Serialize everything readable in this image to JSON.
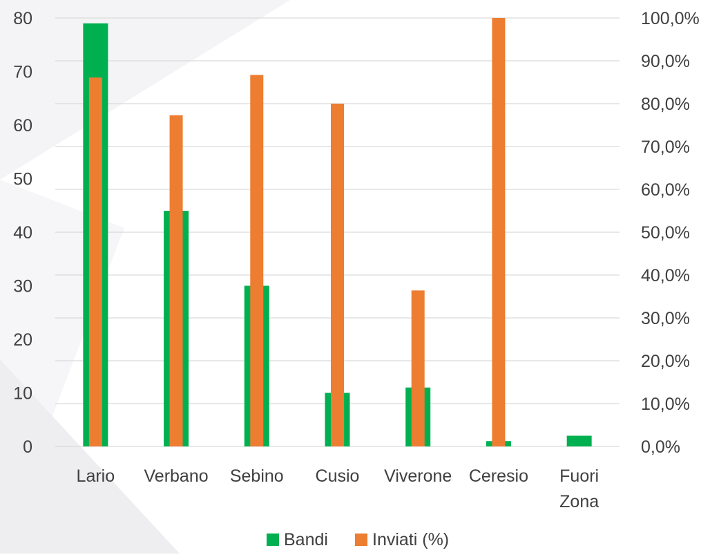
{
  "chart_data": {
    "type": "bar",
    "categories": [
      [
        "Lario"
      ],
      [
        "Verbano"
      ],
      [
        "Sebino"
      ],
      [
        "Cusio"
      ],
      [
        "Viverone"
      ],
      [
        "Ceresio"
      ],
      [
        "Fuori",
        "Zona"
      ]
    ],
    "series": [
      {
        "name": "Bandi",
        "axis": "left",
        "color": "#00b050",
        "values": [
          79,
          44,
          30,
          10,
          11,
          1,
          2
        ]
      },
      {
        "name": "Inviati (%)",
        "axis": "right",
        "color": "#ed7d31",
        "values": [
          86.1,
          77.3,
          86.7,
          80.0,
          36.4,
          100.0,
          0
        ]
      }
    ],
    "y_left": {
      "min": 0,
      "max": 80,
      "step": 10,
      "ticks": [
        "0",
        "10",
        "20",
        "30",
        "40",
        "50",
        "60",
        "70",
        "80"
      ]
    },
    "y_right": {
      "min": 0,
      "max": 100,
      "step": 10,
      "ticks": [
        "0,0%",
        "10,0%",
        "20,0%",
        "30,0%",
        "40,0%",
        "50,0%",
        "60,0%",
        "70,0%",
        "80,0%",
        "90,0%",
        "100,0%"
      ]
    },
    "grid": true,
    "legend_position": "bottom",
    "gridline_color": "#d9d9d9",
    "background_color": "#ffffff"
  }
}
